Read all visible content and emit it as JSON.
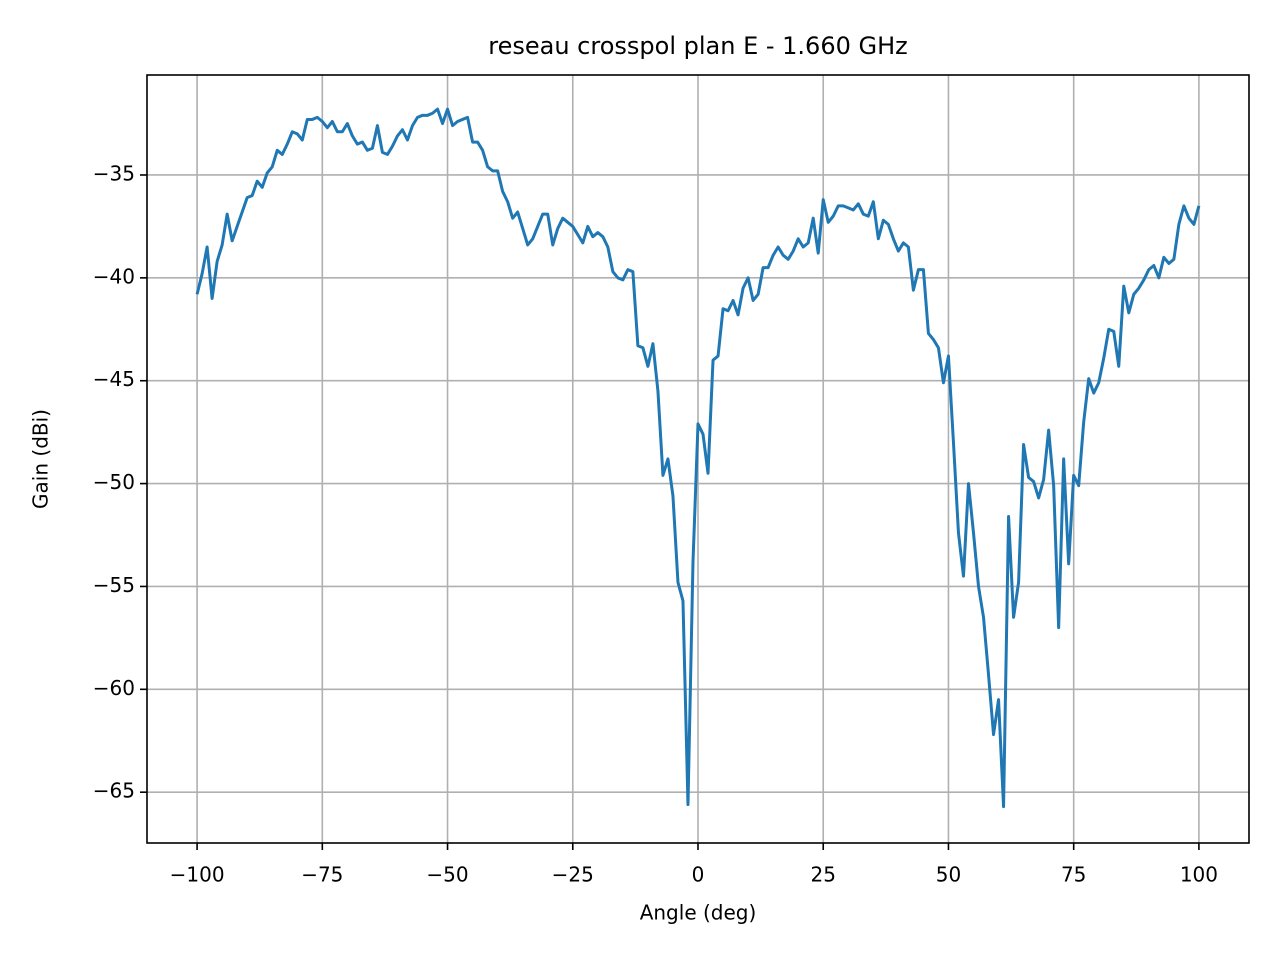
{
  "chart_data": {
    "type": "line",
    "title": "reseau crosspol plan E - 1.660 GHz",
    "x_label": "Angle (deg)",
    "y_label": "Gain (dBi)",
    "xlim": [
      -110,
      110
    ],
    "ylim": [
      -67.47,
      -30.14
    ],
    "xticks": [
      {
        "value": -100,
        "label": "−100"
      },
      {
        "value": -75,
        "label": "−75"
      },
      {
        "value": -50,
        "label": "−50"
      },
      {
        "value": -25,
        "label": "−25"
      },
      0,
      25,
      50,
      75,
      100
    ],
    "yticks": [
      {
        "value": -35,
        "label": "−35"
      },
      {
        "value": -40,
        "label": "−40"
      },
      {
        "value": -45,
        "label": "−45"
      },
      {
        "value": -50,
        "label": "−50"
      },
      {
        "value": -55,
        "label": "−55"
      },
      {
        "value": -60,
        "label": "−60"
      },
      {
        "value": -65,
        "label": "−65"
      }
    ],
    "grid": true,
    "x": [
      -100,
      -99,
      -98,
      -97,
      -96,
      -95,
      -94,
      -93,
      -92,
      -91,
      -90,
      -89,
      -88,
      -87,
      -86,
      -85,
      -84,
      -83,
      -82,
      -81,
      -80,
      -79,
      -78,
      -77,
      -76,
      -75,
      -74,
      -73,
      -72,
      -71,
      -70,
      -69,
      -68,
      -67,
      -66,
      -65,
      -64,
      -63,
      -62,
      -61,
      -60,
      -59,
      -58,
      -57,
      -56,
      -55,
      -54,
      -53,
      -52,
      -51,
      -50,
      -49,
      -48,
      -47,
      -46,
      -45,
      -44,
      -43,
      -42,
      -41,
      -40,
      -39,
      -38,
      -37,
      -36,
      -35,
      -34,
      -33,
      -32,
      -31,
      -30,
      -29,
      -28,
      -27,
      -26,
      -25,
      -24,
      -23,
      -22,
      -21,
      -20,
      -19,
      -18,
      -17,
      -16,
      -15,
      -14,
      -13,
      -12,
      -11,
      -10,
      -9,
      -8,
      -7,
      -6,
      -5,
      -4,
      -3,
      -2,
      -1,
      0,
      1,
      2,
      3,
      4,
      5,
      6,
      7,
      8,
      9,
      10,
      11,
      12,
      13,
      14,
      15,
      16,
      17,
      18,
      19,
      20,
      21,
      22,
      23,
      24,
      25,
      26,
      27,
      28,
      29,
      30,
      31,
      32,
      33,
      34,
      35,
      36,
      37,
      38,
      39,
      40,
      41,
      42,
      43,
      44,
      45,
      46,
      47,
      48,
      49,
      50,
      51,
      52,
      53,
      54,
      55,
      56,
      57,
      58,
      59,
      60,
      61,
      62,
      63,
      64,
      65,
      66,
      67,
      68,
      69,
      70,
      71,
      72,
      73,
      74,
      75,
      76,
      77,
      78,
      79,
      80,
      81,
      82,
      83,
      84,
      85,
      86,
      87,
      88,
      89,
      90,
      91,
      92,
      93,
      94,
      95,
      96,
      97,
      98,
      99,
      100
    ],
    "series": [
      {
        "color": "#1f77b4",
        "values": [
          -40.8,
          -39.8,
          -38.5,
          -41.0,
          -39.2,
          -38.4,
          -36.9,
          -38.2,
          -37.5,
          -36.8,
          -36.1,
          -36.0,
          -35.3,
          -35.6,
          -34.9,
          -34.6,
          -33.8,
          -34.0,
          -33.5,
          -32.9,
          -33.0,
          -33.3,
          -32.3,
          -32.3,
          -32.2,
          -32.4,
          -32.7,
          -32.4,
          -32.9,
          -32.9,
          -32.5,
          -33.1,
          -33.5,
          -33.4,
          -33.8,
          -33.7,
          -32.6,
          -33.9,
          -34.0,
          -33.6,
          -33.1,
          -32.8,
          -33.3,
          -32.6,
          -32.2,
          -32.1,
          -32.1,
          -32.0,
          -31.8,
          -32.5,
          -31.8,
          -32.6,
          -32.4,
          -32.3,
          -32.2,
          -33.4,
          -33.4,
          -33.8,
          -34.6,
          -34.8,
          -34.8,
          -35.8,
          -36.3,
          -37.1,
          -36.8,
          -37.6,
          -38.4,
          -38.1,
          -37.5,
          -36.9,
          -36.9,
          -38.4,
          -37.6,
          -37.1,
          -37.3,
          -37.5,
          -37.9,
          -38.3,
          -37.5,
          -38.0,
          -37.8,
          -38.0,
          -38.5,
          -39.7,
          -40.0,
          -40.1,
          -39.6,
          -39.7,
          -43.3,
          -43.4,
          -44.3,
          -43.2,
          -45.5,
          -49.6,
          -48.8,
          -50.6,
          -54.8,
          -55.7,
          -65.6,
          -53.8,
          -47.1,
          -47.6,
          -49.5,
          -44.0,
          -43.8,
          -41.5,
          -41.6,
          -41.1,
          -41.8,
          -40.5,
          -40.0,
          -41.1,
          -40.8,
          -39.5,
          -39.5,
          -38.9,
          -38.5,
          -38.9,
          -39.1,
          -38.7,
          -38.1,
          -38.5,
          -38.3,
          -37.1,
          -38.8,
          -36.2,
          -37.3,
          -37.0,
          -36.5,
          -36.5,
          -36.6,
          -36.7,
          -36.4,
          -36.9,
          -37.0,
          -36.3,
          -38.1,
          -37.2,
          -37.4,
          -38.1,
          -38.7,
          -38.3,
          -38.5,
          -40.6,
          -39.6,
          -39.6,
          -42.7,
          -43.0,
          -43.4,
          -45.1,
          -43.8,
          -48.0,
          -52.4,
          -54.5,
          -50.0,
          -52.4,
          -55.0,
          -56.5,
          -59.3,
          -62.2,
          -60.5,
          -65.7,
          -51.6,
          -56.5,
          -54.8,
          -48.1,
          -49.7,
          -49.9,
          -50.7,
          -49.8,
          -47.4,
          -50.1,
          -57.0,
          -48.8,
          -53.9,
          -49.6,
          -50.1,
          -47.0,
          -44.9,
          -45.6,
          -45.1,
          -43.9,
          -42.5,
          -42.6,
          -44.3,
          -40.4,
          -41.7,
          -40.8,
          -40.5,
          -40.1,
          -39.6,
          -39.4,
          -40.0,
          -39.0,
          -39.3,
          -39.1,
          -37.4,
          -36.5,
          -37.1,
          -37.4,
          -36.5
        ]
      }
    ]
  }
}
